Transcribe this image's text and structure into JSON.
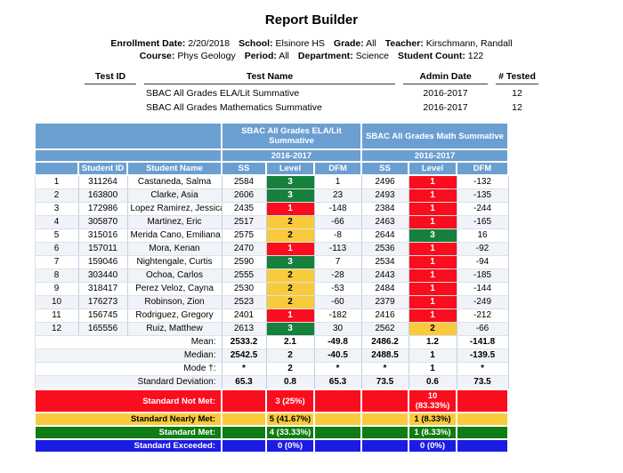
{
  "title": "Report Builder",
  "info": {
    "line1": [
      {
        "label": "Enrollment Date:",
        "value": "2/20/2018"
      },
      {
        "label": "School:",
        "value": "Elsinore HS"
      },
      {
        "label": "Grade:",
        "value": "All"
      },
      {
        "label": "Teacher:",
        "value": "Kirschmann, Randall"
      }
    ],
    "line2": [
      {
        "label": "Course:",
        "value": "Phys Geology"
      },
      {
        "label": "Period:",
        "value": "All"
      },
      {
        "label": "Department:",
        "value": "Science"
      },
      {
        "label": "Student Count:",
        "value": "122"
      }
    ]
  },
  "tests": {
    "headers": [
      "Test ID",
      "Test Name",
      "Admin Date",
      "# Tested"
    ],
    "rows": [
      {
        "test_id": "",
        "test_name": "SBAC All Grades ELA/Lit Summative",
        "admin_date": "2016-2017",
        "num_tested": "12"
      },
      {
        "test_id": "",
        "test_name": "SBAC All Grades Mathematics Summative",
        "admin_date": "2016-2017",
        "num_tested": "12"
      }
    ]
  },
  "results_table": {
    "group_headers": [
      "SBAC All Grades ELA/Lit Summative",
      "SBAC All Grades Math Summative"
    ],
    "year_headers": [
      "2016-2017",
      "2016-2017"
    ],
    "column_headers": [
      "Student ID",
      "Student Name",
      "SS",
      "Level",
      "DFM",
      "SS",
      "Level",
      "DFM"
    ],
    "level_colors": {
      "1": "#fa0d1e",
      "2": "#f9ca3b",
      "3": "#16803c"
    },
    "level_text_colors": {
      "1": "#ffffff",
      "2": "#000000",
      "3": "#ffffff"
    },
    "students": [
      {
        "row": "1",
        "id": "311264",
        "name": "Castaneda, Salma",
        "ela_ss": "2584",
        "ela_level": "3",
        "ela_dfm": "1",
        "math_ss": "2496",
        "math_level": "1",
        "math_dfm": "-132"
      },
      {
        "row": "2",
        "id": "163800",
        "name": "Clarke, Asia",
        "ela_ss": "2606",
        "ela_level": "3",
        "ela_dfm": "23",
        "math_ss": "2493",
        "math_level": "1",
        "math_dfm": "-135"
      },
      {
        "row": "3",
        "id": "172986",
        "name": "Lopez Ramirez, Jessica",
        "ela_ss": "2435",
        "ela_level": "1",
        "ela_dfm": "-148",
        "math_ss": "2384",
        "math_level": "1",
        "math_dfm": "-244"
      },
      {
        "row": "4",
        "id": "305870",
        "name": "Martinez, Eric",
        "ela_ss": "2517",
        "ela_level": "2",
        "ela_dfm": "-66",
        "math_ss": "2463",
        "math_level": "1",
        "math_dfm": "-165"
      },
      {
        "row": "5",
        "id": "315016",
        "name": "Merida Cano, Emiliana",
        "ela_ss": "2575",
        "ela_level": "2",
        "ela_dfm": "-8",
        "math_ss": "2644",
        "math_level": "3",
        "math_dfm": "16"
      },
      {
        "row": "6",
        "id": "157011",
        "name": "Mora, Kenan",
        "ela_ss": "2470",
        "ela_level": "1",
        "ela_dfm": "-113",
        "math_ss": "2536",
        "math_level": "1",
        "math_dfm": "-92"
      },
      {
        "row": "7",
        "id": "159046",
        "name": "Nightengale, Curtis",
        "ela_ss": "2590",
        "ela_level": "3",
        "ela_dfm": "7",
        "math_ss": "2534",
        "math_level": "1",
        "math_dfm": "-94"
      },
      {
        "row": "8",
        "id": "303440",
        "name": "Ochoa, Carlos",
        "ela_ss": "2555",
        "ela_level": "2",
        "ela_dfm": "-28",
        "math_ss": "2443",
        "math_level": "1",
        "math_dfm": "-185"
      },
      {
        "row": "9",
        "id": "318417",
        "name": "Perez Veloz, Cayna",
        "ela_ss": "2530",
        "ela_level": "2",
        "ela_dfm": "-53",
        "math_ss": "2484",
        "math_level": "1",
        "math_dfm": "-144"
      },
      {
        "row": "10",
        "id": "176273",
        "name": "Robinson, Zion",
        "ela_ss": "2523",
        "ela_level": "2",
        "ela_dfm": "-60",
        "math_ss": "2379",
        "math_level": "1",
        "math_dfm": "-249"
      },
      {
        "row": "11",
        "id": "156745",
        "name": "Rodriguez, Gregory",
        "ela_ss": "2401",
        "ela_level": "1",
        "ela_dfm": "-182",
        "math_ss": "2416",
        "math_level": "1",
        "math_dfm": "-212"
      },
      {
        "row": "12",
        "id": "165556",
        "name": "Ruiz, Matthew",
        "ela_ss": "2613",
        "ela_level": "3",
        "ela_dfm": "30",
        "math_ss": "2562",
        "math_level": "2",
        "math_dfm": "-66"
      }
    ],
    "summary": [
      {
        "label": "Mean:",
        "values": [
          "2533.2",
          "2.1",
          "-49.8",
          "2486.2",
          "1.2",
          "-141.8"
        ]
      },
      {
        "label": "Median:",
        "values": [
          "2542.5",
          "2",
          "-40.5",
          "2488.5",
          "1",
          "-139.5"
        ]
      },
      {
        "label": "Mode †:",
        "values": [
          "*",
          "2",
          "*",
          "*",
          "1",
          "*"
        ]
      },
      {
        "label": "Standard Deviation:",
        "values": [
          "65.3",
          "0.8",
          "65.3",
          "73.5",
          "0.6",
          "73.5"
        ]
      }
    ],
    "standards": [
      {
        "label": "Standard Not Met:",
        "ela_level": "3 (25%)",
        "math_level": "10 (83.33%)",
        "color": "#fa0d1e",
        "text_color": "#ffffff"
      },
      {
        "label": "Standard Nearly Met:",
        "ela_level": "5 (41.67%)",
        "math_level": "1 (8.33%)",
        "color": "#f9ca3b",
        "text_color": "#000000"
      },
      {
        "label": "Standard Met:",
        "ela_level": "4 (33.33%)",
        "math_level": "1 (8.33%)",
        "color": "#0e7d13",
        "text_color": "#ffffff"
      },
      {
        "label": "Standard Exceeded:",
        "ela_level": "0 (0%)",
        "math_level": "0 (0%)",
        "color": "#1b1ce2",
        "text_color": "#ffffff"
      }
    ]
  }
}
